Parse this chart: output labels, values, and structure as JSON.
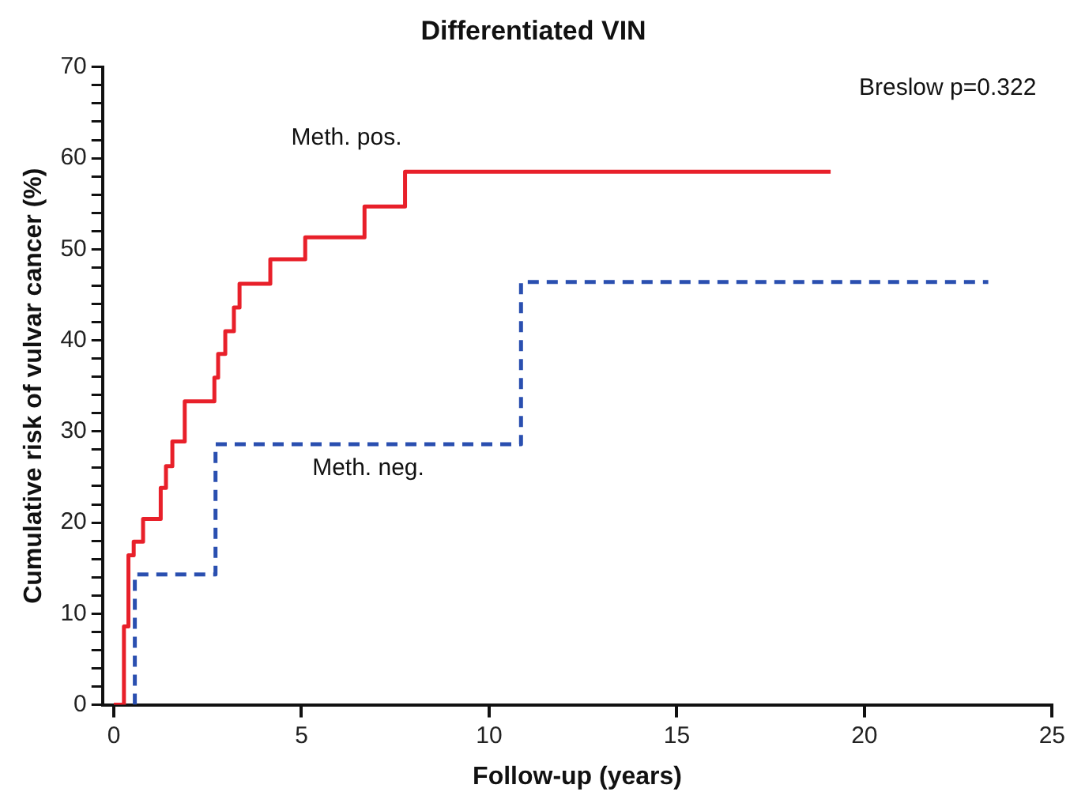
{
  "chart_data": {
    "type": "step",
    "title": "Differentiated VIN",
    "xlabel": "Follow-up (years)",
    "ylabel": "Cumulative risk of vulvar cancer (%)",
    "annotations": [
      "Breslow p=0.322"
    ],
    "xlim": [
      -0.3,
      25
    ],
    "xticks": [
      0,
      5,
      10,
      15,
      20,
      25
    ],
    "ylim": [
      0,
      70
    ],
    "yticks": [
      0,
      {
        "value": 2,
        "label": null
      },
      {
        "value": 4,
        "label": null
      },
      {
        "value": 6,
        "label": null
      },
      {
        "value": 8,
        "label": null
      },
      10,
      {
        "value": 12,
        "label": null
      },
      {
        "value": 14,
        "label": null
      },
      {
        "value": 16,
        "label": null
      },
      {
        "value": 18,
        "label": null
      },
      20,
      {
        "value": 22,
        "label": null
      },
      {
        "value": 24,
        "label": null
      },
      {
        "value": 26,
        "label": null
      },
      {
        "value": 28,
        "label": null
      },
      30,
      {
        "value": 32,
        "label": null
      },
      {
        "value": 34,
        "label": null
      },
      {
        "value": 36,
        "label": null
      },
      {
        "value": 38,
        "label": null
      },
      40,
      {
        "value": 42,
        "label": null
      },
      {
        "value": 44,
        "label": null
      },
      {
        "value": 46,
        "label": null
      },
      {
        "value": 48,
        "label": null
      },
      50,
      {
        "value": 52,
        "label": null
      },
      {
        "value": 54,
        "label": null
      },
      {
        "value": 56,
        "label": null
      },
      {
        "value": 58,
        "label": null
      },
      60,
      {
        "value": 62,
        "label": null
      },
      {
        "value": 64,
        "label": null
      },
      {
        "value": 66,
        "label": null
      },
      {
        "value": 68,
        "label": null
      },
      70
    ],
    "grid": false,
    "legend": false,
    "series": [
      {
        "name": "Meth. pos.",
        "color": "#e8202a",
        "line_style": "solid",
        "x": [
          0,
          0.27,
          0.39,
          0.53,
          0.78,
          1.25,
          1.39,
          1.56,
          1.89,
          2.68,
          2.78,
          2.97,
          3.2,
          3.35,
          4.17,
          5.1,
          6.68,
          7.76,
          19.1
        ],
        "values": [
          0,
          8.6,
          16.4,
          17.9,
          20.4,
          23.8,
          26.2,
          28.9,
          33.3,
          35.9,
          38.5,
          41.0,
          43.6,
          46.2,
          48.9,
          51.3,
          54.7,
          58.5,
          58.5
        ]
      },
      {
        "name": "Meth. neg.",
        "color": "#2a4fb0",
        "line_style": "dashed",
        "x": [
          0.56,
          0.56,
          2.71,
          10.85,
          23.3
        ],
        "values": [
          0,
          14.3,
          28.6,
          46.4,
          46.4
        ]
      }
    ]
  }
}
